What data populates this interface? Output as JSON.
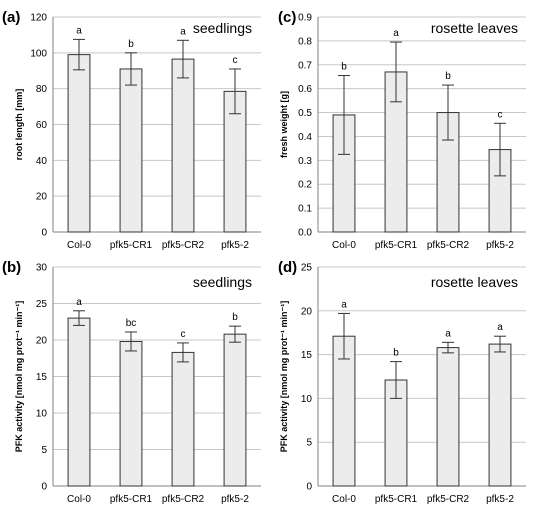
{
  "colors": {
    "bar_fill": "#ececec",
    "bar_stroke": "#333333",
    "grid": "#c8c8c8"
  },
  "chart_data": [
    {
      "type": "bar",
      "panel": "(a)",
      "title": "seedlings",
      "ylabel": "root length [mm]",
      "ylim": [
        0,
        120
      ],
      "yticks": [
        0,
        20,
        40,
        60,
        80,
        100,
        120
      ],
      "grid": true,
      "categories": [
        "Col-0",
        "pfk5-CR1",
        "pfk5-CR2",
        "pfk5-2"
      ],
      "values": [
        99,
        91,
        96.5,
        78.5
      ],
      "errors": [
        8.5,
        9,
        10.5,
        12.5
      ],
      "labels": [
        "a",
        "b",
        "a",
        "c"
      ]
    },
    {
      "type": "bar",
      "panel": "(c)",
      "title": "rosette leaves",
      "ylabel": "fresh weight [g]",
      "ylim": [
        0,
        0.9
      ],
      "yticks": [
        0,
        0.1,
        0.2,
        0.3,
        0.4,
        0.5,
        0.6,
        0.7,
        0.8,
        0.9
      ],
      "grid": true,
      "categories": [
        "Col-0",
        "pfk5-CR1",
        "pfk5-CR2",
        "pfk5-2"
      ],
      "values": [
        0.49,
        0.67,
        0.5,
        0.345
      ],
      "errors": [
        0.165,
        0.125,
        0.115,
        0.11
      ],
      "labels": [
        "b",
        "a",
        "b",
        "c"
      ]
    },
    {
      "type": "bar",
      "panel": "(b)",
      "title": "seedlings",
      "ylabel": "PFK activity [nmol mg prot⁻¹ min⁻¹]",
      "ylim": [
        0,
        30
      ],
      "yticks": [
        0,
        5,
        10,
        15,
        20,
        25,
        30
      ],
      "grid": true,
      "categories": [
        "Col-0",
        "pfk5-CR1",
        "pfk5-CR2",
        "pfk5-2"
      ],
      "values": [
        23,
        19.8,
        18.3,
        20.8
      ],
      "errors": [
        1.0,
        1.3,
        1.3,
        1.1
      ],
      "labels": [
        "a",
        "bc",
        "c",
        "b"
      ]
    },
    {
      "type": "bar",
      "panel": "(d)",
      "title": "rosette leaves",
      "ylabel": "PFK activity [nmol mg prot⁻¹ min⁻¹]",
      "ylim": [
        0,
        25
      ],
      "yticks": [
        0,
        5,
        10,
        15,
        20,
        25
      ],
      "grid": true,
      "categories": [
        "Col-0",
        "pfk5-CR1",
        "pfk5-CR2",
        "pfk5-2"
      ],
      "values": [
        17.1,
        12.1,
        15.8,
        16.2
      ],
      "errors": [
        2.6,
        2.1,
        0.6,
        0.9
      ],
      "labels": [
        "a",
        "b",
        "a",
        "a"
      ]
    }
  ]
}
